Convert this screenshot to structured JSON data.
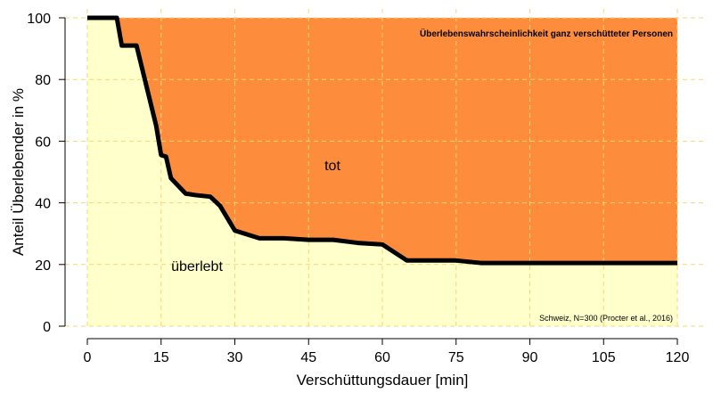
{
  "chart_data": {
    "type": "area",
    "title": "Überlebenswahrscheinlichkeit ganz verschütteter Personen",
    "xlabel": "Verschüttungsdauer [min]",
    "ylabel": "Anteil Überlebender in %",
    "xlim": [
      0,
      120
    ],
    "ylim": [
      0,
      100
    ],
    "xticks": [
      0,
      15,
      30,
      45,
      60,
      75,
      90,
      105,
      120
    ],
    "yticks": [
      0,
      20,
      40,
      60,
      80,
      100
    ],
    "grid": true,
    "x": [
      0,
      6,
      7,
      10,
      12,
      14,
      15,
      16,
      17,
      20,
      22,
      25,
      27,
      30,
      35,
      40,
      45,
      50,
      55,
      60,
      65,
      75,
      80,
      120
    ],
    "y": [
      100,
      100,
      91,
      91,
      78,
      65,
      55.5,
      55,
      48,
      43,
      42.5,
      42,
      39,
      31,
      28.5,
      28.5,
      28,
      28,
      27,
      26.5,
      21.3,
      21.3,
      20.5,
      20.5
    ],
    "region_labels": {
      "above": "tot",
      "below": "überlebt"
    },
    "source": "Schweiz, N=300 (Procter et al., 2016)",
    "colors": {
      "above": "#fd8d3c",
      "below": "#ffffcc",
      "line": "#000000",
      "grid": "#f5d77a"
    }
  }
}
